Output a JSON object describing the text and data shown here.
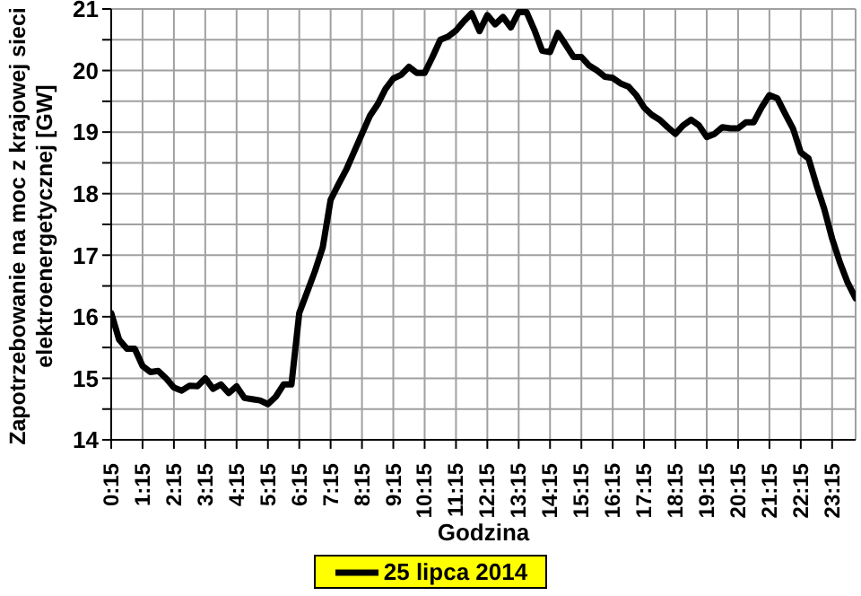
{
  "chart_data": {
    "type": "line",
    "xlabel": "Godzina",
    "ylabel": "Zapotrzebowanie na moc z krajowej sieci\nelektroenergetycznej [GW]",
    "categories": [
      "0:15",
      null,
      null,
      null,
      "1:15",
      null,
      null,
      null,
      "2:15",
      null,
      null,
      null,
      "3:15",
      null,
      null,
      null,
      "4:15",
      null,
      null,
      null,
      "5:15",
      null,
      null,
      null,
      "6:15",
      null,
      null,
      null,
      "7:15",
      null,
      null,
      null,
      "8:15",
      null,
      null,
      null,
      "9:15",
      null,
      null,
      null,
      "10:15",
      null,
      null,
      null,
      "11:15",
      null,
      null,
      null,
      "12:15",
      null,
      null,
      null,
      "13:15",
      null,
      null,
      null,
      "14:15",
      null,
      null,
      null,
      "15:15",
      null,
      null,
      null,
      "16:15",
      null,
      null,
      null,
      "17:15",
      null,
      null,
      null,
      "18:15",
      null,
      null,
      null,
      "19:15",
      null,
      null,
      null,
      "20:15",
      null,
      null,
      null,
      "21:15",
      null,
      null,
      null,
      "22:15",
      null,
      null,
      null,
      "23:15",
      null,
      null,
      null
    ],
    "series": [
      {
        "name": "25 lipca 2014",
        "color": "#000000",
        "values": [
          16.06,
          15.63,
          15.48,
          15.48,
          15.2,
          15.1,
          15.12,
          15.0,
          14.85,
          14.8,
          14.88,
          14.87,
          15.0,
          14.83,
          14.9,
          14.76,
          14.87,
          14.68,
          14.66,
          14.64,
          14.58,
          14.7,
          14.9,
          14.9,
          16.06,
          16.4,
          16.74,
          17.13,
          17.9,
          18.15,
          18.39,
          18.68,
          18.97,
          19.26,
          19.45,
          19.7,
          19.87,
          19.93,
          20.06,
          19.96,
          19.96,
          20.22,
          20.5,
          20.55,
          20.65,
          20.8,
          20.93,
          20.64,
          20.9,
          20.75,
          20.87,
          20.7,
          20.95,
          20.95,
          20.66,
          20.32,
          20.3,
          20.61,
          20.42,
          20.22,
          20.22,
          20.08,
          20.0,
          19.9,
          19.88,
          19.79,
          19.74,
          19.6,
          19.4,
          19.28,
          19.2,
          19.08,
          18.97,
          19.11,
          19.2,
          19.11,
          18.92,
          18.97,
          19.08,
          19.06,
          19.06,
          19.16,
          19.16,
          19.4,
          19.6,
          19.55,
          19.3,
          19.06,
          18.67,
          18.57,
          18.14,
          17.75,
          17.27,
          16.88,
          16.55,
          16.3
        ]
      }
    ],
    "ylim": [
      14,
      21
    ],
    "yticks": [
      14,
      {
        "value": 14.5,
        "label": null
      },
      15,
      {
        "value": 15.5,
        "label": null
      },
      16,
      {
        "value": 16.5,
        "label": null
      },
      17,
      {
        "value": 17.5,
        "label": null
      },
      18,
      {
        "value": 18.5,
        "label": null
      },
      19,
      {
        "value": 19.5,
        "label": null
      },
      20,
      {
        "value": 20.5,
        "label": null
      },
      21
    ],
    "grid": true,
    "legend": "bottom",
    "marker": "none",
    "line_style": "solid"
  }
}
